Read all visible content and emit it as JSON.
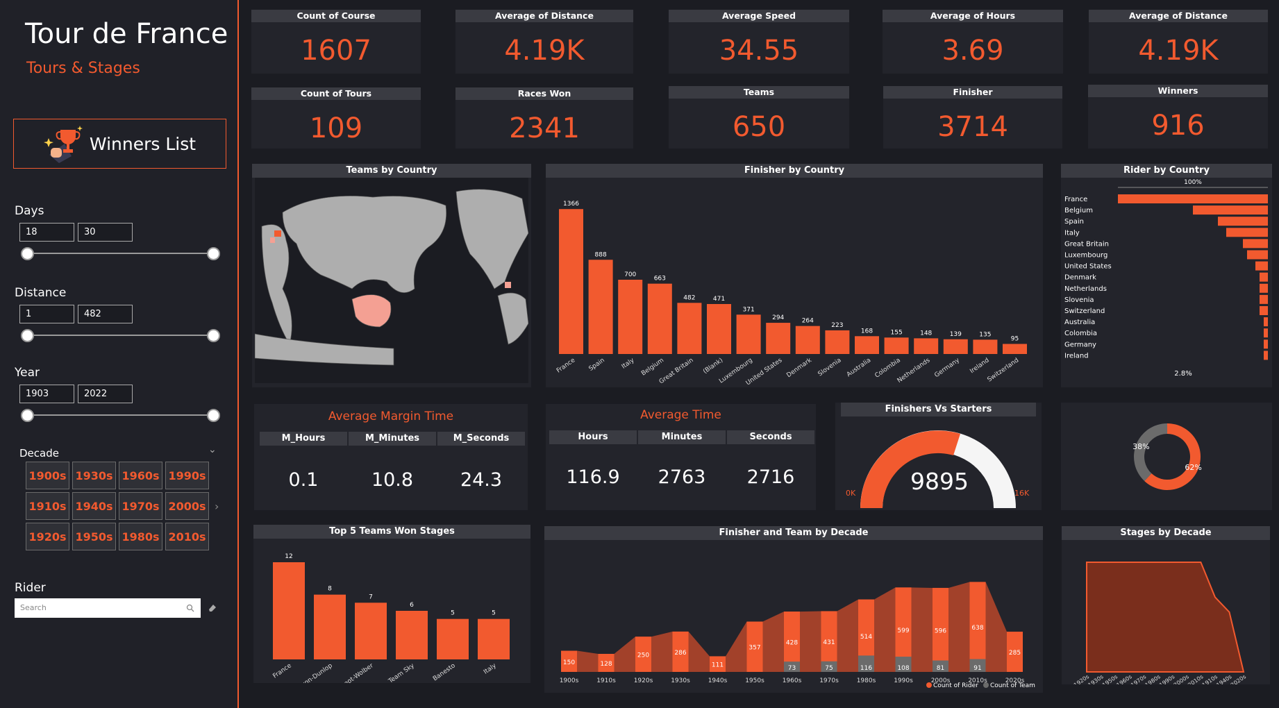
{
  "sidebar": {
    "title": "Tour de France",
    "subtitle": "Tours & Stages",
    "winners_button": "Winners List",
    "days": {
      "label": "Days",
      "min": "18",
      "max": "30"
    },
    "distance": {
      "label": "Distance",
      "min": "1",
      "max": "482"
    },
    "year": {
      "label": "Year",
      "min": "1903",
      "max": "2022"
    },
    "decade": {
      "label": "Decade",
      "options": [
        "1900s",
        "1930s",
        "1960s",
        "1990s",
        "1910s",
        "1940s",
        "1970s",
        "2000s",
        "1920s",
        "1950s",
        "1980s",
        "2010s"
      ]
    },
    "rider": {
      "label": "Rider",
      "placeholder": "Search"
    }
  },
  "kpis": [
    {
      "label": "Count of Course",
      "value": "1607"
    },
    {
      "label": "Average of Distance",
      "value": "4.19K"
    },
    {
      "label": "Average Speed",
      "value": "34.55"
    },
    {
      "label": "Average of Hours",
      "value": "3.69"
    },
    {
      "label": "Average of Distance",
      "value": "4.19K"
    },
    {
      "label": "Count of Tours",
      "value": "109"
    },
    {
      "label": "Races Won",
      "value": "2341"
    },
    {
      "label": "Teams",
      "value": "650"
    },
    {
      "label": "Finisher",
      "value": "3714"
    },
    {
      "label": "Winners",
      "value": "916"
    }
  ],
  "colors": {
    "accent": "#f25a2f",
    "bg": "#1b1c22",
    "panel": "#23242b",
    "header": "#3a3b42",
    "team": "#6b6b6b"
  },
  "teams_by_country": {
    "title": "Teams by Country"
  },
  "margin": {
    "title": "Average Margin Time",
    "cols": [
      "M_Hours",
      "M_Minutes",
      "M_Seconds"
    ],
    "values": [
      "0.1",
      "10.8",
      "24.3"
    ]
  },
  "avg_time": {
    "title": "Average Time",
    "cols": [
      "Hours",
      "Minutes",
      "Seconds"
    ],
    "values": [
      "116.9",
      "2763",
      "2716"
    ]
  },
  "gauge": {
    "title": "Finishers Vs Starters",
    "value": "9895",
    "min_label": "0K",
    "max_label": "16K"
  },
  "chart_data": [
    {
      "type": "bar",
      "title": "Finisher by Country",
      "categories": [
        "France",
        "Spain",
        "Italy",
        "Belgium",
        "Great Britain",
        "(Blank)",
        "Luxembourg",
        "United States",
        "Denmark",
        "Slovenia",
        "Australia",
        "Colombia",
        "Netherlands",
        "Germany",
        "Ireland",
        "Switzerland"
      ],
      "values": [
        1366,
        888,
        700,
        663,
        482,
        471,
        371,
        294,
        264,
        223,
        168,
        155,
        148,
        139,
        135,
        95
      ]
    },
    {
      "type": "bar",
      "title": "Rider by Country",
      "orientation": "horizontal-funnel",
      "categories": [
        "France",
        "Belgium",
        "Spain",
        "Italy",
        "Great Britain",
        "Luxembourg",
        "United States",
        "Denmark",
        "Netherlands",
        "Slovenia",
        "Switzerland",
        "Australia",
        "Colombia",
        "Germany",
        "Ireland"
      ],
      "values": [
        36,
        18,
        12,
        10,
        6,
        5,
        3,
        2,
        2,
        2,
        2,
        1,
        1,
        1,
        1
      ],
      "top_label": "100%",
      "bottom_label": "2.8%"
    },
    {
      "type": "pie",
      "title": "",
      "labels": [
        "62%",
        "38%"
      ],
      "values": [
        62,
        38
      ]
    },
    {
      "type": "bar",
      "title": "Top 5 Teams Won Stages",
      "categories": [
        "France",
        "Alcyon-Dunlop",
        "Peugeot-Wolber",
        "Team Sky",
        "Banesto",
        "Italy"
      ],
      "values": [
        12,
        8,
        7,
        6,
        5,
        5
      ]
    },
    {
      "type": "bar",
      "title": "Finisher and Team by Decade",
      "categories": [
        "1900s",
        "1910s",
        "1920s",
        "1930s",
        "1940s",
        "1950s",
        "1960s",
        "1970s",
        "1980s",
        "1990s",
        "2000s",
        "2010s",
        "2020s"
      ],
      "series": [
        {
          "name": "Count of Rider",
          "values": [
            150,
            128,
            250,
            286,
            111,
            357,
            428,
            431,
            514,
            599,
            596,
            638,
            285
          ]
        },
        {
          "name": "Count of Team",
          "values": [
            null,
            null,
            null,
            null,
            null,
            null,
            73,
            75,
            116,
            108,
            81,
            91,
            null
          ]
        }
      ]
    },
    {
      "type": "area",
      "title": "Stages by Decade",
      "categories": [
        "1920s",
        "1930s",
        "1950s",
        "1960s",
        "1970s",
        "1980s",
        "1990s",
        "2000s",
        "2010s",
        "1910s",
        "1940s",
        "2020s"
      ],
      "values": [
        22,
        22,
        22,
        22,
        22,
        22,
        22,
        22,
        22,
        15,
        12,
        0
      ]
    }
  ]
}
